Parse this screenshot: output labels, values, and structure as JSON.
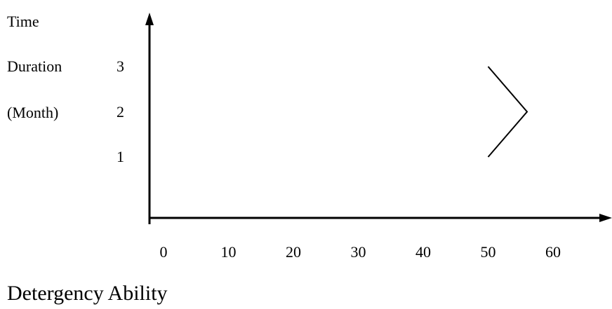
{
  "chart_data": {
    "type": "line",
    "ylabel_lines": [
      "Time",
      "Duration",
      "(Month)"
    ],
    "xlabel": "Detergency Ability",
    "x_ticks": [
      0,
      10,
      20,
      30,
      40,
      50,
      60
    ],
    "y_ticks": [
      1,
      2,
      3
    ],
    "xlim": [
      0,
      60
    ],
    "ylim": [
      1,
      3
    ],
    "series": [
      {
        "x": [
          50,
          56,
          50
        ],
        "y": [
          1,
          2,
          3
        ]
      }
    ],
    "grid": false,
    "line_color": "#000000"
  }
}
